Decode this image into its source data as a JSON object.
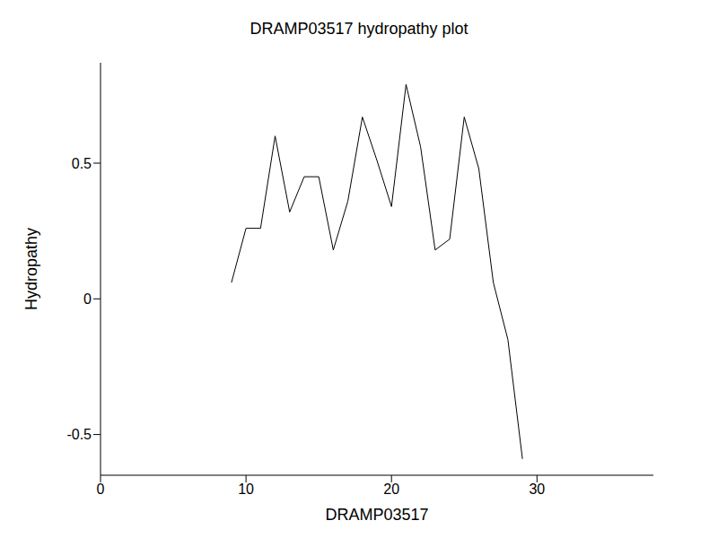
{
  "chart_data": {
    "type": "line",
    "title": "DRAMP03517 hydropathy plot",
    "x_label": "DRAMP03517",
    "y_label": "Hydropathy",
    "x": [
      9,
      10,
      11,
      12,
      13,
      14,
      15,
      16,
      17,
      18,
      19,
      20,
      21,
      22,
      23,
      24,
      25,
      26,
      27,
      28,
      29
    ],
    "values": [
      0.06,
      0.26,
      0.26,
      0.6,
      0.32,
      0.45,
      0.45,
      0.18,
      0.36,
      0.67,
      0.51,
      0.34,
      0.79,
      0.56,
      0.18,
      0.22,
      0.67,
      0.48,
      0.06,
      -0.15,
      -0.59
    ],
    "color": "#000000",
    "xlim": [
      0,
      38
    ],
    "ylim": [
      -0.65,
      0.87
    ],
    "xticks": [
      0,
      10,
      20,
      30
    ],
    "yticks": [
      -0.5,
      0,
      0.5
    ],
    "grid": false
  }
}
